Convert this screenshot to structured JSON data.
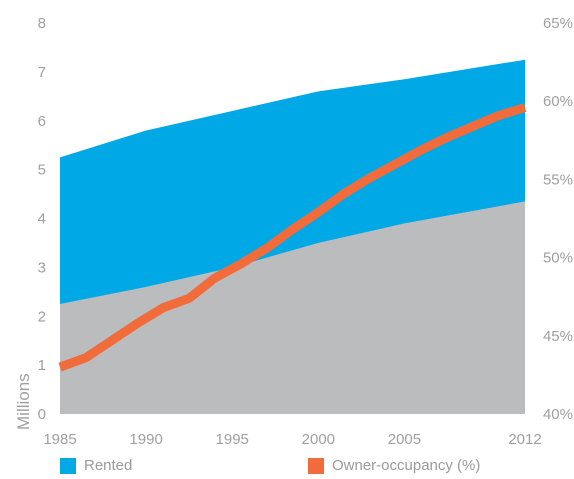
{
  "chart_data": {
    "type": "area",
    "x_ticks": [
      "1985",
      "1990",
      "1995",
      "2000",
      "2005",
      "2012"
    ],
    "y_left_ticks": [
      "0",
      "1",
      "2",
      "3",
      "4",
      "5",
      "6",
      "7",
      "8"
    ],
    "y_right_ticks": [
      "40%",
      "45%",
      "50%",
      "55%",
      "60%",
      "65%"
    ],
    "ylabel_left": "Millions",
    "xlim": [
      1985,
      2012
    ],
    "ylim_left": [
      0,
      8
    ],
    "ylim_right": [
      40,
      65
    ],
    "series": [
      {
        "name": "Rented",
        "type": "area",
        "axis": "left",
        "color": "#00a9e6",
        "x": [
          1985,
          1990,
          1995,
          2000,
          2005,
          2012
        ],
        "values": [
          5.25,
          5.8,
          6.2,
          6.6,
          6.85,
          7.25
        ]
      },
      {
        "name": "",
        "type": "area",
        "axis": "left",
        "color": "#babcbe",
        "x": [
          1985,
          1990,
          1995,
          2000,
          2005,
          2012
        ],
        "values": [
          2.25,
          2.6,
          3.0,
          3.5,
          3.9,
          4.35
        ]
      },
      {
        "name": "Owner-occupancy (%)",
        "type": "line",
        "axis": "right",
        "color": "#f26b3a",
        "x": [
          1985,
          1986.5,
          1988,
          1989.5,
          1991,
          1992.5,
          1994,
          1995.5,
          1997,
          1998.5,
          2000,
          2001.5,
          2003,
          2004.5,
          2006,
          2007.5,
          2009,
          2010.5,
          2012
        ],
        "values": [
          43.0,
          43.6,
          44.7,
          45.8,
          46.8,
          47.4,
          48.7,
          49.6,
          50.6,
          51.8,
          52.9,
          54.1,
          55.1,
          56.0,
          56.9,
          57.7,
          58.4,
          59.1,
          59.6
        ]
      }
    ]
  },
  "legend": {
    "rented_label": "Rented",
    "owner_label": "Owner-occupancy (%)"
  }
}
